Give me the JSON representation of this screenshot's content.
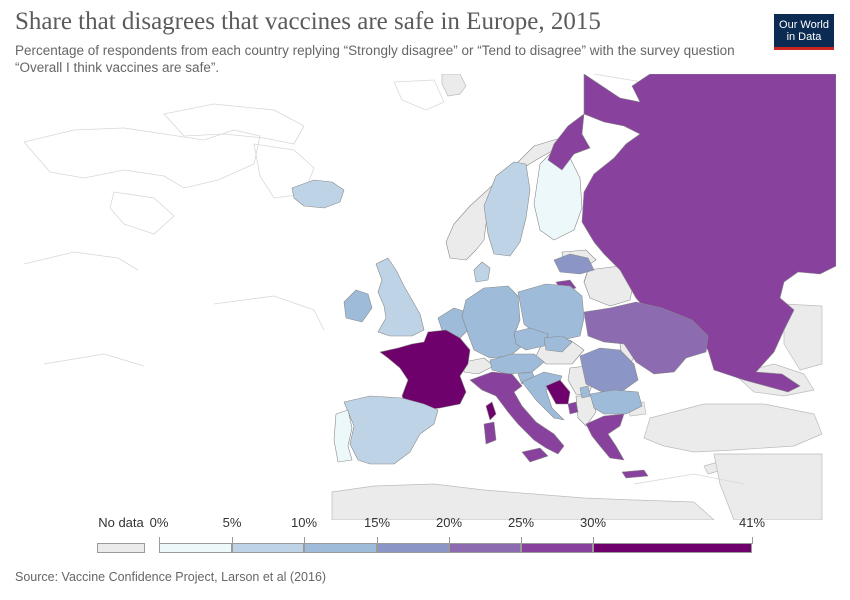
{
  "title": "Share that disagrees that vaccines are safe in Europe, 2015",
  "subtitle": "Percentage of respondents from each country replying “Strongly disagree” or “Tend to disagree” with the survey question “Overall I think vaccines are safe”.",
  "logo": {
    "line1": "Our World",
    "line2": "in Data"
  },
  "source": "Source: Vaccine Confidence Project, Larson et al (2016)",
  "legend": {
    "no_data_label": "No data",
    "no_data_color": "#ebebeb",
    "ticks": [
      "0%",
      "5%",
      "10%",
      "15%",
      "20%",
      "25%",
      "30%",
      "41%"
    ],
    "colors": [
      "#edf8fb",
      "#bfd3e6",
      "#9ebcda",
      "#8c96c6",
      "#8c6bb1",
      "#88419d",
      "#6e016b"
    ]
  },
  "colors": {
    "background": "#ffffff",
    "land_no_data": "#ebebeb",
    "title": "#5b5b5b",
    "logo_bg": "#0b2b52",
    "logo_accent": "#ce261e"
  }
}
